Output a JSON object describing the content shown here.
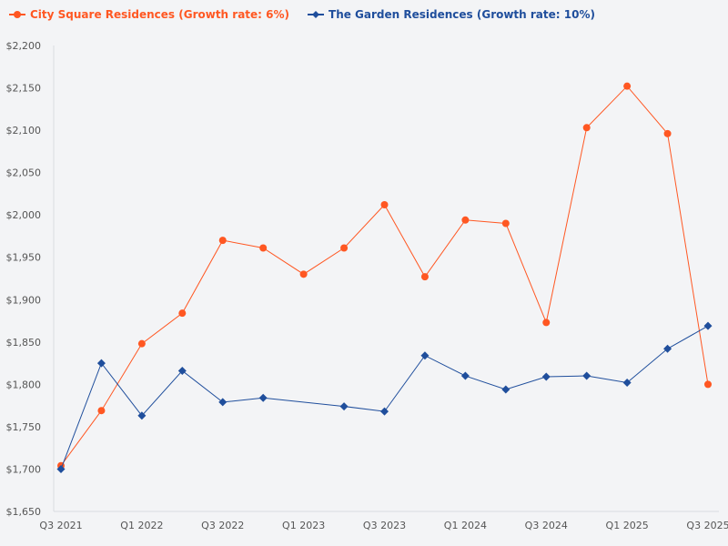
{
  "chart_data": {
    "type": "line",
    "title": "",
    "xlabel": "",
    "ylabel": "",
    "x": [
      "Q3 2021",
      "Q4 2021",
      "Q1 2022",
      "Q2 2022",
      "Q3 2022",
      "Q4 2022",
      "Q1 2023",
      "Q2 2023",
      "Q3 2023",
      "Q4 2023",
      "Q1 2024",
      "Q2 2024",
      "Q3 2024",
      "Q4 2024",
      "Q1 2025",
      "Q2 2025",
      "Q3 2025"
    ],
    "x_tick_labels": [
      "Q3 2021",
      "Q1 2022",
      "Q3 2022",
      "Q1 2023",
      "Q3 2023",
      "Q1 2024",
      "Q3 2024",
      "Q1 2025",
      "Q3 2025"
    ],
    "ylim": [
      1650,
      2200
    ],
    "y_ticks": [
      1650,
      1700,
      1750,
      1800,
      1850,
      1900,
      1950,
      2000,
      2050,
      2100,
      2150,
      2200
    ],
    "y_tick_labels": [
      "$1,650",
      "$1,700",
      "$1,750",
      "$1,800",
      "$1,850",
      "$1,900",
      "$1,950",
      "$2,000",
      "$2,050",
      "$2,100",
      "$2,150",
      "$2,200"
    ],
    "grid": false,
    "legend_position": "top-left",
    "series": [
      {
        "name": "City Square Residences (Growth rate: 6%)",
        "color": "#ff5722",
        "marker": "circle",
        "values": [
          1704,
          1769,
          1848,
          1884,
          1970,
          1961,
          1930,
          1961,
          2012,
          1927,
          1994,
          1990,
          1873,
          2103,
          2152,
          2096,
          1800
        ]
      },
      {
        "name": "The Garden Residences (Growth rate: 10%)",
        "color": "#1f4e9c",
        "marker": "diamond",
        "values": [
          1700,
          1825,
          1763,
          1816,
          1779,
          1784,
          null,
          1774,
          1768,
          1834,
          1810,
          1794,
          1809,
          1810,
          1802,
          1842,
          1869
        ]
      }
    ]
  }
}
